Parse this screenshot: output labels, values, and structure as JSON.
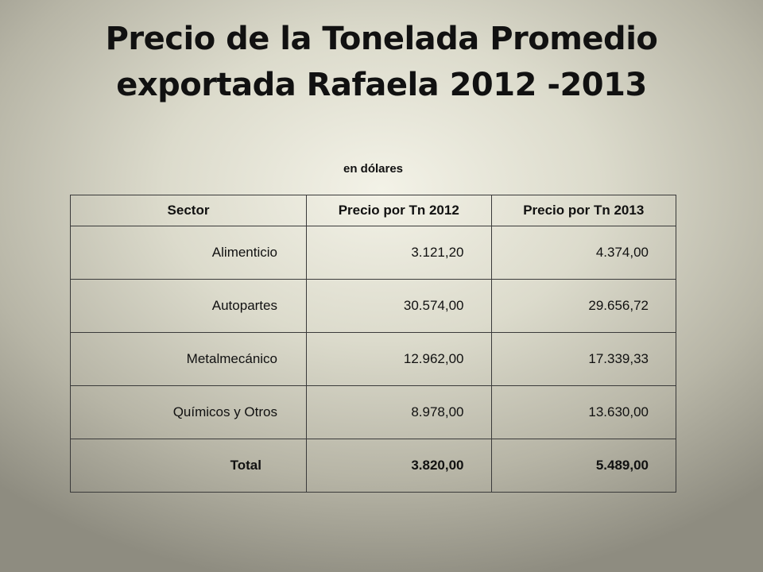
{
  "slide": {
    "title_line1": "Precio de la Tonelada Promedio",
    "title_line2": "exportada Rafaela 2012 -2013",
    "subtitle": "en dólares"
  },
  "table": {
    "headers": [
      "Sector",
      "Precio por Tn 2012",
      "Precio por Tn 2013"
    ],
    "rows": [
      {
        "sector": "Alimenticio",
        "price_2012": "3.121,20",
        "price_2013": "4.374,00"
      },
      {
        "sector": "Autopartes",
        "price_2012": "30.574,00",
        "price_2013": "29.656,72"
      },
      {
        "sector": "Metalmecánico",
        "price_2012": "12.962,00",
        "price_2013": "17.339,33"
      },
      {
        "sector": "Químicos y Otros",
        "price_2012": "8.978,00",
        "price_2013": "13.630,00"
      }
    ],
    "total": {
      "label": "Total",
      "price_2012": "3.820,00",
      "price_2013": "5.489,00"
    }
  }
}
